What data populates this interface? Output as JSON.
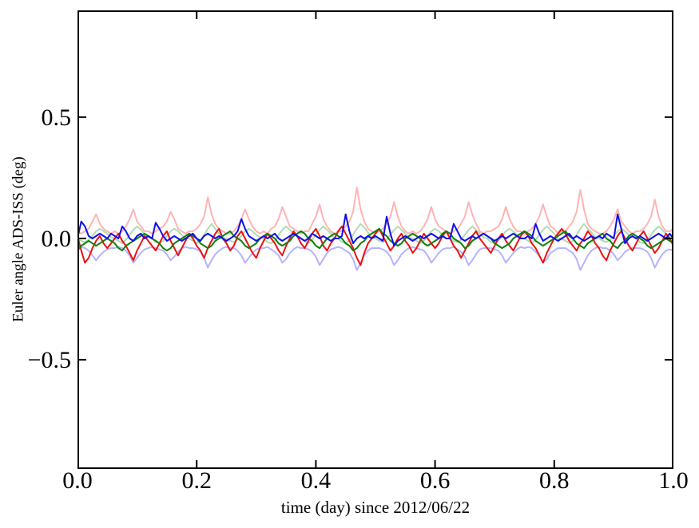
{
  "figure": {
    "background": "#ffffff",
    "axis_color": "#000000"
  },
  "chart_data": {
    "type": "line",
    "title": "",
    "xlabel": "time (day) since 2012/06/22",
    "ylabel": "Euler angle ADS-ISS (deg)",
    "xlim": [
      0.0,
      1.0
    ],
    "ylim": [
      -0.95,
      0.94
    ],
    "grid": false,
    "legend_position": "none",
    "x_ticks": [
      0.0,
      0.2,
      0.4,
      0.6,
      0.8,
      1.0
    ],
    "x_tick_labels": [
      "0.0",
      "0.2",
      "0.4",
      "0.6",
      "0.8",
      "1.0"
    ],
    "y_ticks": [
      0.5,
      0.0,
      -0.5
    ],
    "y_tick_labels": [
      "0.5",
      "0.0",
      "−0.5"
    ],
    "x_start": 0.0,
    "x_step": 0.00625,
    "series": [
      {
        "name": "light-red",
        "color": "#ffb3b3",
        "values": [
          0.03,
          0.02,
          0.03,
          0.04,
          0.07,
          0.1,
          0.06,
          0.04,
          0.03,
          0.02,
          0.03,
          0.02,
          0.03,
          0.05,
          0.08,
          0.12,
          0.07,
          0.05,
          0.03,
          0.03,
          0.02,
          0.03,
          0.04,
          0.05,
          0.07,
          0.11,
          0.08,
          0.04,
          0.03,
          0.02,
          0.03,
          0.03,
          0.04,
          0.06,
          0.09,
          0.17,
          0.1,
          0.06,
          0.04,
          0.03,
          0.02,
          0.02,
          0.03,
          0.05,
          0.08,
          0.12,
          0.08,
          0.05,
          0.03,
          0.02,
          0.03,
          0.02,
          0.04,
          0.05,
          0.08,
          0.13,
          0.09,
          0.05,
          0.04,
          0.03,
          0.02,
          0.03,
          0.03,
          0.06,
          0.09,
          0.14,
          0.08,
          0.05,
          0.03,
          0.02,
          0.03,
          0.03,
          0.05,
          0.07,
          0.11,
          0.21,
          0.12,
          0.07,
          0.04,
          0.03,
          0.02,
          0.03,
          0.04,
          0.06,
          0.09,
          0.15,
          0.09,
          0.05,
          0.03,
          0.02,
          0.03,
          0.02,
          0.03,
          0.05,
          0.08,
          0.13,
          0.08,
          0.05,
          0.04,
          0.03,
          0.02,
          0.03,
          0.04,
          0.06,
          0.09,
          0.15,
          0.1,
          0.06,
          0.03,
          0.02,
          0.03,
          0.03,
          0.04,
          0.05,
          0.08,
          0.13,
          0.08,
          0.05,
          0.03,
          0.03,
          0.02,
          0.03,
          0.04,
          0.06,
          0.09,
          0.14,
          0.09,
          0.05,
          0.04,
          0.02,
          0.03,
          0.03,
          0.05,
          0.07,
          0.11,
          0.2,
          0.12,
          0.06,
          0.04,
          0.03,
          0.02,
          0.02,
          0.03,
          0.05,
          0.08,
          0.12,
          0.07,
          0.05,
          0.03,
          0.02,
          0.03,
          0.03,
          0.04,
          0.06,
          0.09,
          0.16,
          0.09,
          0.05,
          0.03,
          0.03,
          0.04
        ]
      },
      {
        "name": "light-green",
        "color": "#b3d9b3",
        "values": [
          0.0,
          -0.01,
          -0.015,
          -0.005,
          0.01,
          0.03,
          0.04,
          0.03,
          0.02,
          0.005,
          0.0,
          -0.01,
          -0.02,
          -0.005,
          0.015,
          0.035,
          0.05,
          0.035,
          0.02,
          0.005,
          0.0,
          -0.015,
          -0.02,
          -0.01,
          0.01,
          0.03,
          0.04,
          0.03,
          0.015,
          0.0,
          0.0,
          -0.01,
          -0.02,
          -0.005,
          0.015,
          0.04,
          0.06,
          0.04,
          0.02,
          0.005,
          0.0,
          -0.01,
          -0.015,
          -0.005,
          0.01,
          0.03,
          0.04,
          0.03,
          0.015,
          0.005,
          0.0,
          -0.015,
          -0.02,
          -0.01,
          0.015,
          0.035,
          0.05,
          0.035,
          0.02,
          0.005,
          0.0,
          -0.01,
          -0.02,
          -0.005,
          0.015,
          0.035,
          0.05,
          0.035,
          0.02,
          0.0,
          0.0,
          -0.015,
          -0.02,
          -0.01,
          0.015,
          0.04,
          0.06,
          0.045,
          0.025,
          0.005,
          0.0,
          -0.01,
          -0.015,
          -0.005,
          0.015,
          0.035,
          0.05,
          0.035,
          0.02,
          0.005,
          0.0,
          -0.01,
          -0.02,
          -0.01,
          0.01,
          0.03,
          0.04,
          0.03,
          0.015,
          0.0,
          0.0,
          -0.01,
          -0.015,
          -0.005,
          0.015,
          0.035,
          0.05,
          0.035,
          0.02,
          0.005,
          0.0,
          -0.015,
          -0.02,
          -0.01,
          0.01,
          0.03,
          0.04,
          0.03,
          0.015,
          0.005,
          0.0,
          -0.01,
          -0.02,
          -0.005,
          0.015,
          0.035,
          0.05,
          0.035,
          0.02,
          0.0,
          0.0,
          -0.01,
          -0.02,
          -0.01,
          0.015,
          0.04,
          0.06,
          0.04,
          0.025,
          0.005,
          0.0,
          -0.01,
          -0.015,
          -0.005,
          0.01,
          0.03,
          0.04,
          0.03,
          0.015,
          0.005,
          0.0,
          -0.015,
          -0.02,
          -0.005,
          0.015,
          0.035,
          0.05,
          0.035,
          0.02,
          0.005,
          0.0
        ]
      },
      {
        "name": "light-blue",
        "color": "#b3b3ff",
        "values": [
          -0.04,
          -0.035,
          -0.04,
          -0.05,
          -0.07,
          -0.09,
          -0.07,
          -0.055,
          -0.045,
          -0.04,
          -0.04,
          -0.035,
          -0.04,
          -0.05,
          -0.07,
          -0.1,
          -0.08,
          -0.06,
          -0.045,
          -0.04,
          -0.035,
          -0.04,
          -0.045,
          -0.05,
          -0.065,
          -0.09,
          -0.075,
          -0.055,
          -0.04,
          -0.035,
          -0.04,
          -0.04,
          -0.045,
          -0.055,
          -0.08,
          -0.12,
          -0.09,
          -0.065,
          -0.05,
          -0.04,
          -0.035,
          -0.04,
          -0.04,
          -0.05,
          -0.07,
          -0.1,
          -0.08,
          -0.06,
          -0.045,
          -0.04,
          -0.04,
          -0.035,
          -0.045,
          -0.055,
          -0.07,
          -0.1,
          -0.085,
          -0.06,
          -0.045,
          -0.035,
          -0.04,
          -0.04,
          -0.045,
          -0.055,
          -0.075,
          -0.11,
          -0.085,
          -0.06,
          -0.045,
          -0.04,
          -0.035,
          -0.04,
          -0.05,
          -0.06,
          -0.085,
          -0.13,
          -0.1,
          -0.07,
          -0.05,
          -0.04,
          -0.04,
          -0.04,
          -0.045,
          -0.055,
          -0.075,
          -0.11,
          -0.09,
          -0.065,
          -0.05,
          -0.04,
          -0.035,
          -0.04,
          -0.045,
          -0.05,
          -0.07,
          -0.1,
          -0.08,
          -0.06,
          -0.045,
          -0.04,
          -0.04,
          -0.035,
          -0.045,
          -0.055,
          -0.075,
          -0.11,
          -0.09,
          -0.065,
          -0.045,
          -0.04,
          -0.04,
          -0.04,
          -0.045,
          -0.05,
          -0.07,
          -0.1,
          -0.08,
          -0.06,
          -0.045,
          -0.035,
          -0.04,
          -0.035,
          -0.04,
          -0.055,
          -0.07,
          -0.1,
          -0.085,
          -0.06,
          -0.05,
          -0.04,
          -0.04,
          -0.04,
          -0.05,
          -0.06,
          -0.085,
          -0.13,
          -0.1,
          -0.07,
          -0.05,
          -0.04,
          -0.035,
          -0.04,
          -0.04,
          -0.05,
          -0.065,
          -0.09,
          -0.075,
          -0.055,
          -0.045,
          -0.04,
          -0.04,
          -0.04,
          -0.045,
          -0.055,
          -0.08,
          -0.12,
          -0.09,
          -0.065,
          -0.05,
          -0.045,
          -0.05
        ]
      },
      {
        "name": "red",
        "color": "#ee1111",
        "values": [
          0.01,
          -0.05,
          -0.1,
          -0.08,
          -0.04,
          -0.01,
          0.01,
          -0.02,
          -0.04,
          -0.02,
          0.0,
          0.02,
          -0.01,
          -0.03,
          -0.06,
          -0.09,
          -0.05,
          -0.02,
          0.01,
          -0.01,
          -0.03,
          -0.05,
          -0.02,
          0.01,
          0.03,
          -0.01,
          -0.04,
          -0.07,
          -0.04,
          -0.01,
          0.02,
          0.0,
          -0.03,
          -0.05,
          -0.08,
          -0.04,
          -0.01,
          0.02,
          0.04,
          0.0,
          -0.02,
          -0.05,
          -0.03,
          0.01,
          0.03,
          0.0,
          -0.03,
          -0.06,
          -0.08,
          -0.04,
          -0.01,
          0.02,
          0.0,
          -0.02,
          -0.05,
          -0.07,
          -0.03,
          0.0,
          0.03,
          0.01,
          -0.02,
          -0.04,
          -0.01,
          0.02,
          0.04,
          0.01,
          -0.03,
          -0.05,
          -0.02,
          0.0,
          0.03,
          0.05,
          0.02,
          -0.01,
          -0.04,
          -0.08,
          -0.11,
          -0.06,
          -0.02,
          0.0,
          0.02,
          0.04,
          0.01,
          -0.02,
          -0.05,
          -0.03,
          0.0,
          0.02,
          -0.01,
          -0.03,
          -0.06,
          -0.04,
          -0.01,
          0.02,
          0.0,
          -0.02,
          -0.04,
          -0.02,
          0.01,
          0.03,
          0.0,
          -0.03,
          -0.05,
          -0.08,
          -0.05,
          -0.02,
          0.01,
          0.03,
          0.0,
          -0.02,
          -0.04,
          -0.06,
          -0.03,
          0.0,
          0.02,
          -0.01,
          -0.03,
          -0.05,
          -0.02,
          0.01,
          0.03,
          0.01,
          -0.02,
          -0.04,
          -0.07,
          -0.1,
          -0.06,
          -0.03,
          0.0,
          0.02,
          0.04,
          0.02,
          -0.01,
          -0.03,
          -0.05,
          -0.02,
          0.0,
          0.03,
          0.01,
          -0.02,
          -0.04,
          -0.07,
          -0.09,
          -0.05,
          -0.02,
          0.01,
          0.03,
          0.0,
          -0.03,
          -0.05,
          -0.02,
          0.01,
          0.03,
          0.0,
          -0.03,
          -0.06,
          -0.04,
          -0.01,
          0.02,
          0.0,
          -0.03
        ]
      },
      {
        "name": "green",
        "color": "#0e800e",
        "values": [
          -0.05,
          -0.03,
          -0.02,
          -0.01,
          -0.02,
          -0.03,
          -0.02,
          -0.01,
          0.0,
          -0.01,
          -0.02,
          -0.04,
          -0.05,
          -0.03,
          -0.02,
          -0.01,
          0.0,
          0.01,
          0.02,
          0.01,
          0.0,
          -0.01,
          -0.02,
          -0.04,
          -0.05,
          -0.04,
          -0.02,
          -0.01,
          0.0,
          0.01,
          0.02,
          0.01,
          0.0,
          -0.02,
          -0.03,
          -0.04,
          -0.03,
          -0.01,
          0.0,
          0.01,
          0.02,
          0.03,
          0.01,
          0.0,
          -0.01,
          -0.03,
          -0.04,
          -0.03,
          -0.02,
          0.0,
          0.01,
          0.02,
          0.01,
          0.0,
          -0.02,
          -0.03,
          -0.02,
          -0.01,
          0.01,
          0.02,
          0.03,
          0.02,
          0.0,
          -0.01,
          -0.03,
          -0.04,
          -0.02,
          0.0,
          0.01,
          0.02,
          0.01,
          0.0,
          -0.02,
          -0.03,
          -0.05,
          -0.04,
          -0.02,
          -0.01,
          0.01,
          0.02,
          0.03,
          0.04,
          0.02,
          0.01,
          -0.01,
          -0.02,
          -0.03,
          -0.02,
          0.0,
          0.01,
          0.02,
          0.01,
          0.0,
          -0.02,
          -0.03,
          -0.02,
          -0.01,
          0.0,
          0.02,
          0.03,
          0.02,
          0.0,
          -0.01,
          -0.02,
          -0.04,
          -0.03,
          -0.01,
          0.0,
          0.01,
          0.02,
          0.01,
          0.0,
          -0.02,
          -0.03,
          -0.04,
          -0.03,
          -0.02,
          0.0,
          0.01,
          0.02,
          0.03,
          0.02,
          0.01,
          -0.01,
          -0.02,
          -0.03,
          -0.02,
          -0.01,
          0.0,
          0.01,
          0.02,
          0.03,
          0.01,
          0.0,
          -0.02,
          -0.03,
          -0.04,
          -0.02,
          -0.01,
          0.0,
          0.01,
          0.02,
          0.0,
          -0.01,
          -0.03,
          -0.04,
          -0.02,
          -0.01,
          0.01,
          0.02,
          0.01,
          0.0,
          -0.01,
          -0.03,
          -0.04,
          -0.03,
          -0.02,
          -0.01,
          0.0,
          -0.01,
          -0.02
        ]
      },
      {
        "name": "blue",
        "color": "#0f0fe8",
        "values": [
          0.0,
          0.07,
          0.05,
          0.01,
          0.0,
          0.01,
          0.02,
          0.01,
          0.0,
          0.02,
          0.01,
          0.0,
          0.05,
          0.03,
          0.0,
          -0.01,
          0.01,
          0.02,
          0.0,
          0.01,
          0.0,
          0.065,
          0.04,
          0.01,
          -0.01,
          0.0,
          0.01,
          0.0,
          -0.01,
          0.0,
          0.01,
          0.02,
          0.0,
          -0.01,
          0.01,
          0.02,
          0.01,
          0.0,
          0.01,
          0.0,
          -0.01,
          0.0,
          0.01,
          0.03,
          0.08,
          0.04,
          0.01,
          0.0,
          -0.01,
          0.0,
          0.01,
          0.0,
          0.01,
          0.02,
          0.0,
          -0.01,
          0.0,
          0.01,
          0.02,
          0.01,
          0.0,
          -0.01,
          0.0,
          0.02,
          0.01,
          0.0,
          0.01,
          0.0,
          -0.01,
          0.0,
          0.0,
          0.01,
          0.1,
          0.03,
          -0.02,
          0.0,
          0.01,
          0.0,
          0.01,
          0.0,
          0.01,
          0.0,
          -0.01,
          0.09,
          0.02,
          -0.03,
          -0.01,
          0.0,
          0.01,
          0.0,
          -0.01,
          0.0,
          0.01,
          0.0,
          0.01,
          0.02,
          0.01,
          0.0,
          0.01,
          0.0,
          0.0,
          0.06,
          0.03,
          0.0,
          -0.01,
          0.0,
          0.01,
          0.0,
          0.01,
          0.02,
          0.01,
          0.0,
          -0.01,
          0.0,
          0.01,
          0.0,
          0.01,
          0.02,
          0.01,
          0.0,
          0.0,
          0.01,
          0.0,
          0.06,
          0.02,
          -0.01,
          0.0,
          0.01,
          0.0,
          -0.01,
          0.0,
          0.01,
          0.02,
          0.0,
          0.01,
          0.0,
          -0.01,
          0.0,
          0.01,
          0.0,
          0.01,
          0.0,
          0.02,
          0.01,
          0.0,
          0.1,
          0.04,
          -0.02,
          0.0,
          0.01,
          0.0,
          0.01,
          0.0,
          -0.01,
          0.0,
          0.01,
          0.02,
          0.01,
          0.0,
          0.02,
          0.0
        ]
      }
    ]
  }
}
